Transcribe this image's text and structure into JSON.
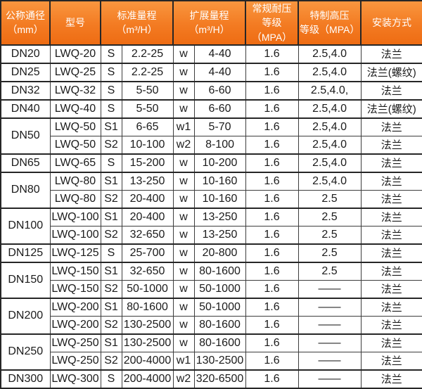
{
  "colors": {
    "header_gradient_top": "#f9963f",
    "header_gradient_bottom": "#ee6c13",
    "header_text": "#ffffff",
    "border_outer": "#262626",
    "border_inner": "#3d3d3d",
    "cell_text": "#1b1b1b",
    "cell_background": "#ffffff"
  },
  "table": {
    "header_cells": [
      {
        "line1": "公称通径",
        "line2": "（mm）",
        "colspan": 1
      },
      {
        "line1": "型号",
        "line2": "",
        "colspan": 1
      },
      {
        "line1": "标准量程",
        "line2": "（m³/H）",
        "colspan": 2
      },
      {
        "line1": "扩展量程",
        "line2": "（m³/H）",
        "colspan": 2
      },
      {
        "line1": "常规耐压",
        "line2": "等级（MPA）",
        "colspan": 1
      },
      {
        "line1": "特制高压",
        "line2": "等级（MPA）",
        "colspan": 1
      },
      {
        "line1": "安装方式",
        "line2": "",
        "colspan": 1
      }
    ]
  },
  "chart_data": {
    "type": "table",
    "columns": [
      "公称通径（mm）",
      "型号",
      "标准量程（m³/H）",
      "标准量程（m³/H）",
      "扩展量程（m³/H）",
      "扩展量程（m³/H）",
      "常规耐压等级（MPA）",
      "特制高压等级（MPA）",
      "安装方式"
    ],
    "rows": [
      [
        "DN20",
        "LWQ-20",
        "S",
        "2.2-25",
        "w",
        "4-40",
        "1.6",
        "2.5,4.0",
        "法兰"
      ],
      [
        "DN25",
        "LWQ-25",
        "S",
        "2.2-25",
        "w",
        "4-40",
        "1.6",
        "2.5,4.0",
        "法兰(螺纹)"
      ],
      [
        "DN32",
        "LWQ-32",
        "S",
        "5-50",
        "w",
        "6-60",
        "1.6",
        "2.5,4.0,",
        "法兰"
      ],
      [
        "DN40",
        "LWQ-40",
        "S",
        "5-50",
        "w",
        "6-60",
        "1.6",
        "2.5,4.0",
        "法兰(螺纹)"
      ],
      [
        "DN50",
        "LWQ-50",
        "S1",
        "6-65",
        "w1",
        "5-70",
        "1.6",
        "2.5,4.0",
        "法兰"
      ],
      [
        "DN50",
        "LWQ-50",
        "S2",
        "10-100",
        "w2",
        "8-100",
        "1.6",
        "2.5,4.0",
        "法兰"
      ],
      [
        "DN65",
        "LWQ-65",
        "S",
        "15-200",
        "w",
        "10-200",
        "1.6",
        "2.5,4.0",
        "法兰"
      ],
      [
        "DN80",
        "LWQ-80",
        "S1",
        "13-250",
        "w",
        "10-160",
        "1.6",
        "2.5,4.0",
        "法兰"
      ],
      [
        "DN80",
        "LWQ-80",
        "S2",
        "20-400",
        "w",
        "10-160",
        "1.6",
        "2.5",
        "法兰"
      ],
      [
        "DN100",
        "LWQ-100",
        "S1",
        "20-400",
        "w",
        "13-250",
        "1.6",
        "2.5",
        "法兰"
      ],
      [
        "DN100",
        "LWQ-100",
        "S2",
        "32-650",
        "w",
        "13-250",
        "1.6",
        "2.5",
        "法兰"
      ],
      [
        "DN125",
        "LWQ-125",
        "S",
        "25-700",
        "w",
        "20-800",
        "1.6",
        "2.5",
        "法兰"
      ],
      [
        "DN150",
        "LWQ-150",
        "S1",
        "32-650",
        "w",
        "80-1600",
        "1.6",
        "2.5",
        "法兰"
      ],
      [
        "DN150",
        "LWQ-150",
        "S2",
        "50-1000",
        "w",
        "50-1000",
        "1.6",
        "——",
        "法兰"
      ],
      [
        "DN200",
        "LWQ-200",
        "S1",
        "80-1600",
        "w",
        "50-1000",
        "1.6",
        "——",
        "法兰"
      ],
      [
        "DN200",
        "LWQ-200",
        "S2",
        "130-2500",
        "w",
        "80-1600",
        "1.6",
        "——",
        "法兰"
      ],
      [
        "DN250",
        "LWQ-250",
        "S1",
        "130-2500",
        "w",
        "80-1600",
        "1.6",
        "——",
        "法兰"
      ],
      [
        "DN250",
        "LWQ-250",
        "S2",
        "200-4000",
        "w1",
        "130-2500",
        "1.6",
        "——",
        "法兰"
      ],
      [
        "DN300",
        "LWQ-300",
        "S",
        "200-4000",
        "w2",
        "320-6500",
        "1.6",
        "——",
        "法兰"
      ]
    ]
  }
}
